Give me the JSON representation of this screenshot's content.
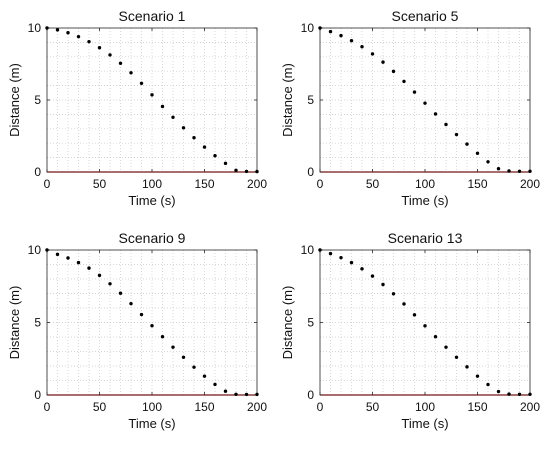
{
  "chart_data": [
    {
      "type": "scatter",
      "title": "Scenario 1",
      "xlabel": "Time (s)",
      "ylabel": "Distance (m)",
      "xlim": [
        0,
        200
      ],
      "ylim": [
        0,
        10
      ],
      "xticks": [
        "0",
        "50",
        "100",
        "150",
        "200"
      ],
      "yticks": [
        "0",
        "5",
        "10"
      ],
      "grid": "minor dotted",
      "reference_line": {
        "y": 0,
        "color": "#ff0000"
      },
      "series": [
        {
          "color": "#000000",
          "x": [
            0,
            10,
            20,
            30,
            40,
            50,
            60,
            70,
            80,
            90,
            100,
            110,
            120,
            130,
            140,
            150,
            160,
            170,
            180,
            190,
            200
          ],
          "y": [
            10,
            9.87,
            9.67,
            9.4,
            9.05,
            8.63,
            8.13,
            7.55,
            6.89,
            6.16,
            5.36,
            4.55,
            3.8,
            3.07,
            2.38,
            1.73,
            1.13,
            0.6,
            0.12,
            0.04,
            0.03
          ]
        }
      ]
    },
    {
      "type": "scatter",
      "title": "Scenario 5",
      "xlabel": "Time (s)",
      "ylabel": "Distance (m)",
      "xlim": [
        0,
        200
      ],
      "ylim": [
        0,
        10
      ],
      "xticks": [
        "0",
        "50",
        "100",
        "150",
        "200"
      ],
      "yticks": [
        "0",
        "5",
        "10"
      ],
      "grid": "minor dotted",
      "reference_line": {
        "y": 0,
        "color": "#ff0000"
      },
      "series": [
        {
          "color": "#000000",
          "x": [
            0,
            10,
            20,
            30,
            40,
            50,
            60,
            70,
            80,
            90,
            100,
            110,
            120,
            130,
            140,
            150,
            160,
            170,
            180,
            190,
            200
          ],
          "y": [
            10,
            9.75,
            9.47,
            9.12,
            8.7,
            8.2,
            7.63,
            6.99,
            6.29,
            5.55,
            4.78,
            4.03,
            3.3,
            2.6,
            1.94,
            1.3,
            0.71,
            0.23,
            0.07,
            0.05,
            0.05
          ]
        }
      ]
    },
    {
      "type": "scatter",
      "title": "Scenario 9",
      "xlabel": "Time (s)",
      "ylabel": "Distance (m)",
      "xlim": [
        0,
        200
      ],
      "ylim": [
        0,
        10
      ],
      "xticks": [
        "0",
        "50",
        "100",
        "150",
        "200"
      ],
      "yticks": [
        "0",
        "5",
        "10"
      ],
      "grid": "minor dotted",
      "reference_line": {
        "y": 0,
        "color": "#ff0000"
      },
      "series": [
        {
          "color": "#000000",
          "x": [
            0,
            10,
            20,
            30,
            40,
            50,
            60,
            70,
            80,
            90,
            100,
            110,
            120,
            130,
            140,
            150,
            160,
            170,
            180,
            190,
            200
          ],
          "y": [
            10,
            9.7,
            9.45,
            9.13,
            8.75,
            8.25,
            7.67,
            7.02,
            6.3,
            5.55,
            4.78,
            4.02,
            3.3,
            2.6,
            1.92,
            1.3,
            0.73,
            0.26,
            0.05,
            0.04,
            0.04
          ]
        }
      ]
    },
    {
      "type": "scatter",
      "title": "Scenario 13",
      "xlabel": "Time (s)",
      "ylabel": "Distance (m)",
      "xlim": [
        0,
        200
      ],
      "ylim": [
        0,
        10
      ],
      "xticks": [
        "0",
        "50",
        "100",
        "150",
        "200"
      ],
      "yticks": [
        "0",
        "5",
        "10"
      ],
      "grid": "minor dotted",
      "reference_line": {
        "y": 0,
        "color": "#ff0000"
      },
      "series": [
        {
          "color": "#000000",
          "x": [
            0,
            10,
            20,
            30,
            40,
            50,
            60,
            70,
            80,
            90,
            100,
            110,
            120,
            130,
            140,
            150,
            160,
            170,
            180,
            190,
            200
          ],
          "y": [
            10,
            9.75,
            9.47,
            9.13,
            8.7,
            8.2,
            7.62,
            6.98,
            6.28,
            5.53,
            4.77,
            4.02,
            3.3,
            2.6,
            1.94,
            1.3,
            0.72,
            0.24,
            0.06,
            0.05,
            0.05
          ]
        }
      ]
    }
  ]
}
